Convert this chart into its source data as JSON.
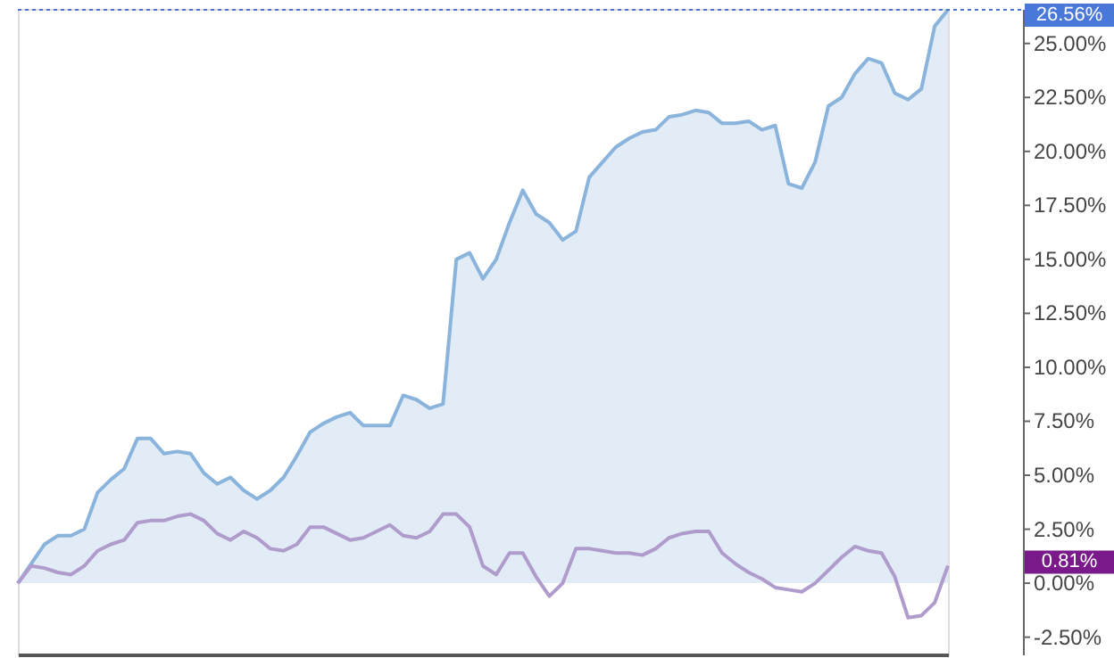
{
  "chart_data": {
    "type": "area",
    "categories": [
      null,
      null,
      null,
      null,
      null,
      null,
      null,
      null,
      null,
      null,
      null,
      null,
      null,
      null,
      null,
      null,
      null,
      null,
      null,
      null,
      null,
      null,
      null,
      null,
      null,
      null,
      null,
      null,
      null,
      null,
      null,
      null,
      null,
      null,
      null,
      null,
      null,
      null,
      null,
      null,
      null,
      null,
      null,
      null,
      null,
      null,
      null,
      null,
      null,
      null,
      null,
      null,
      null,
      null,
      null,
      null,
      null,
      null,
      null,
      null,
      null,
      null,
      null,
      null,
      null,
      null,
      null,
      null,
      null,
      null,
      null
    ],
    "series": [
      {
        "color": "#8ab4dc",
        "values": [
          0.0,
          0.9,
          1.8,
          2.2,
          2.2,
          2.5,
          4.2,
          4.8,
          5.3,
          6.7,
          6.7,
          6.0,
          6.1,
          6.0,
          5.1,
          4.6,
          4.9,
          4.3,
          3.9,
          4.3,
          4.9,
          5.9,
          7.0,
          7.4,
          7.7,
          7.9,
          7.3,
          7.3,
          7.3,
          8.7,
          8.5,
          8.1,
          8.3,
          15.0,
          15.3,
          14.1,
          15.0,
          16.7,
          18.2,
          17.1,
          16.7,
          15.9,
          16.3,
          18.8,
          19.5,
          20.2,
          20.6,
          20.9,
          21.0,
          21.6,
          21.7,
          21.9,
          21.8,
          21.3,
          21.3,
          21.4,
          21.0,
          21.2,
          18.5,
          18.3,
          19.5,
          22.1,
          22.5,
          23.6,
          24.3,
          24.1,
          22.7,
          22.4,
          22.9,
          25.8,
          26.56
        ]
      },
      {
        "type": "line",
        "color": "#b09ccc",
        "values": [
          0.0,
          0.8,
          0.7,
          0.5,
          0.4,
          0.8,
          1.5,
          1.8,
          2.0,
          2.8,
          2.9,
          2.9,
          3.1,
          3.2,
          2.9,
          2.3,
          2.0,
          2.4,
          2.1,
          1.6,
          1.5,
          1.8,
          2.6,
          2.6,
          2.3,
          2.0,
          2.1,
          2.4,
          2.7,
          2.2,
          2.1,
          2.4,
          3.2,
          3.2,
          2.6,
          0.8,
          0.4,
          1.4,
          1.4,
          0.3,
          -0.6,
          0.0,
          1.6,
          1.6,
          1.5,
          1.4,
          1.4,
          1.3,
          1.6,
          2.1,
          2.3,
          2.4,
          2.4,
          1.4,
          0.9,
          0.5,
          0.2,
          -0.2,
          -0.3,
          -0.4,
          0.0,
          0.6,
          1.2,
          1.7,
          1.5,
          1.4,
          0.3,
          -1.6,
          -1.5,
          -0.9,
          0.81
        ]
      }
    ],
    "ylim": [
      -3.3,
      26.6
    ],
    "yticks": [
      {
        "value": -2.5,
        "label": "-2.50%"
      },
      {
        "value": 0,
        "label": "0.00%"
      },
      {
        "value": 2.5,
        "label": "2.50%"
      },
      {
        "value": 5,
        "label": "5.00%"
      },
      {
        "value": 7.5,
        "label": "7.50%"
      },
      {
        "value": 10,
        "label": "10.00%"
      },
      {
        "value": 12.5,
        "label": "12.50%"
      },
      {
        "value": 15,
        "label": "15.00%"
      },
      {
        "value": 17.5,
        "label": "17.50%"
      },
      {
        "value": 20,
        "label": "20.00%"
      },
      {
        "value": 22.5,
        "label": "22.50%"
      },
      {
        "value": 25,
        "label": "25.00%"
      }
    ],
    "ref_lines": [
      {
        "axis": "y",
        "value": 26.56,
        "label": "26.56%",
        "color": "#4a78d8",
        "line_style": "dotted"
      }
    ],
    "annotations": [
      "0.81%"
    ],
    "tick_labels": "y",
    "grid": false,
    "marker": "none",
    "line_style": "solid"
  }
}
